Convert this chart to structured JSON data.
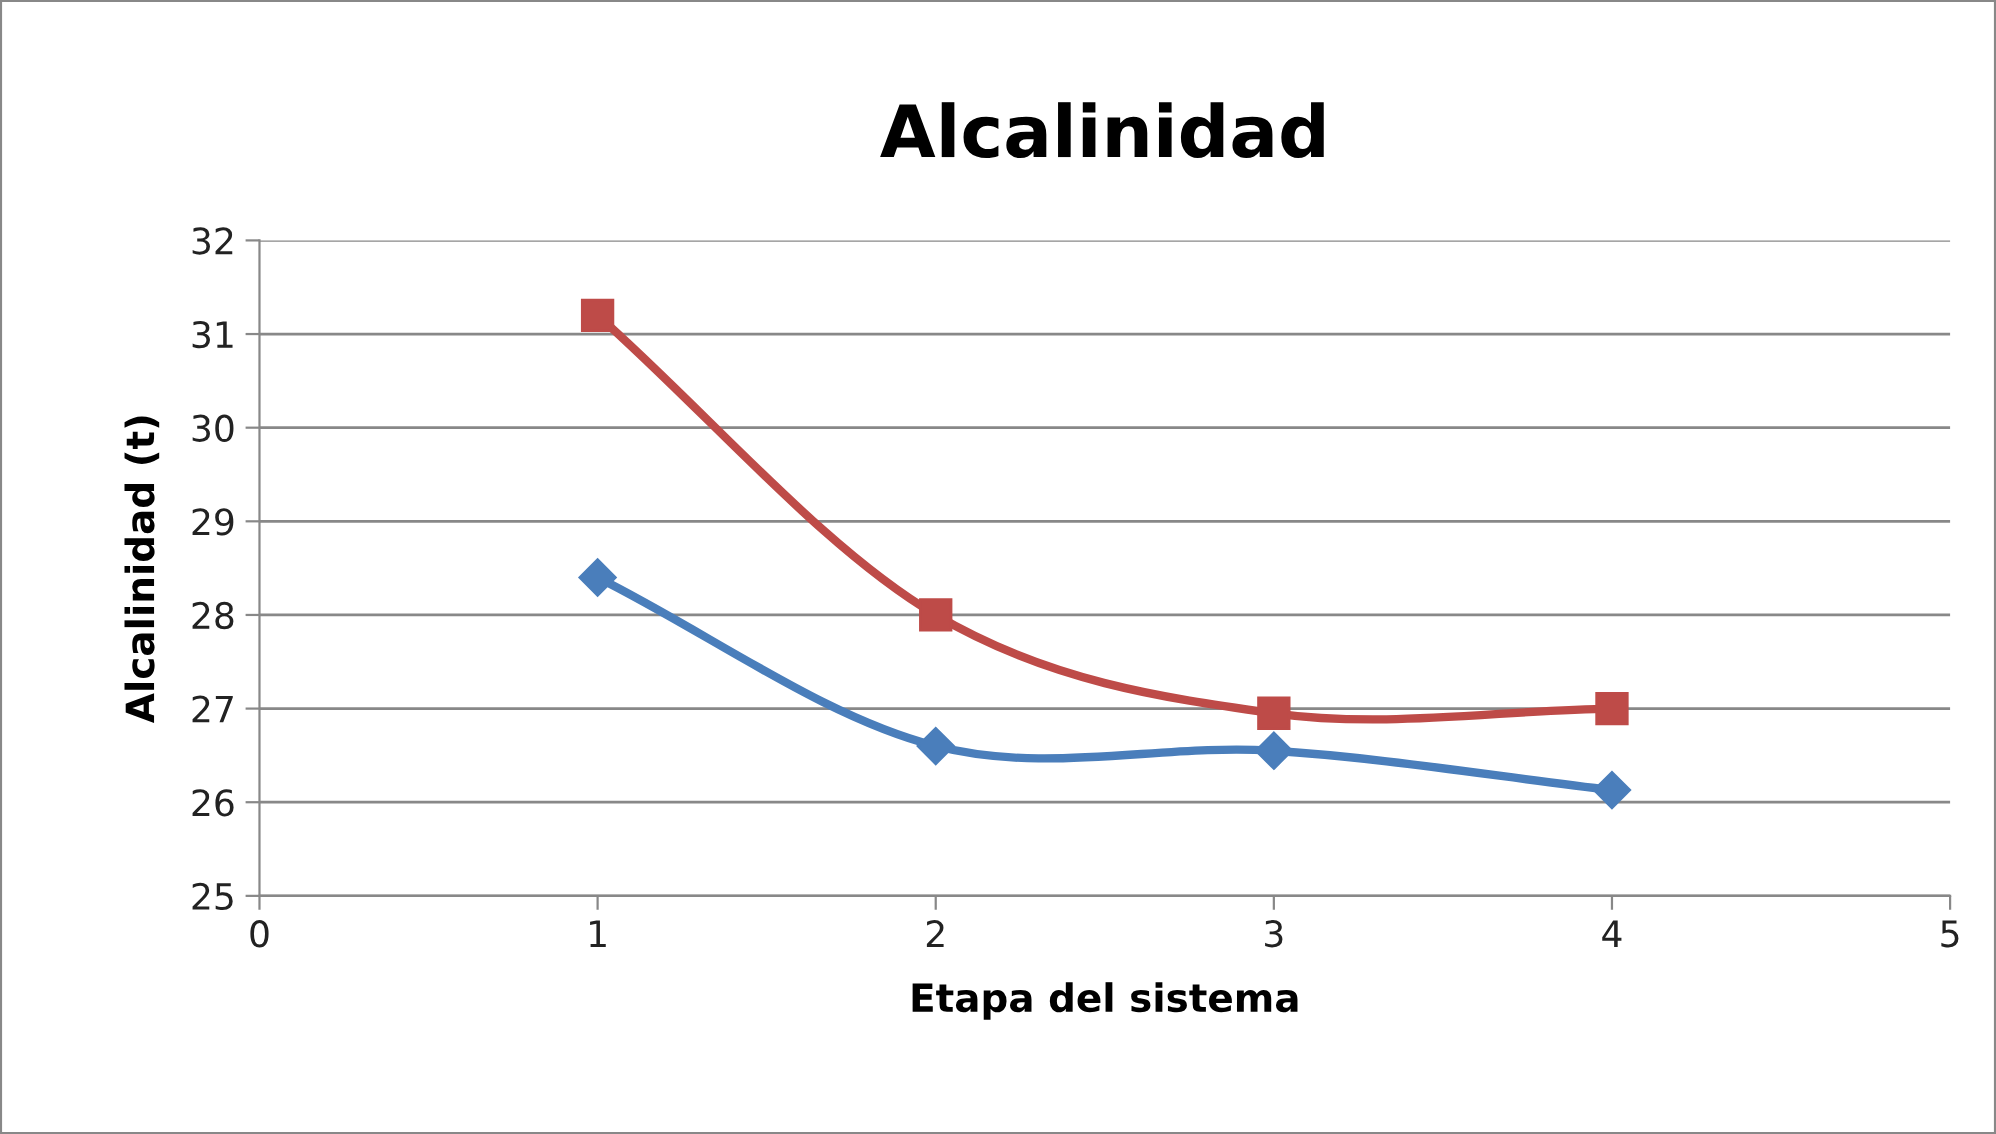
{
  "chart_data": {
    "type": "line",
    "title": "Alcalinidad",
    "xlabel": "Etapa del sistema",
    "ylabel": "Alcalinidad (t)",
    "series": [
      {
        "color": "#4a7ebb",
        "marker": "diamond",
        "x": [
          1,
          2,
          3,
          4
        ],
        "values": [
          28.4,
          26.6,
          26.55,
          26.13
        ]
      },
      {
        "color": "#be4b48",
        "marker": "square",
        "x": [
          1,
          2,
          3,
          4
        ],
        "values": [
          31.2,
          28.0,
          26.95,
          27.0
        ]
      }
    ],
    "xlim": [
      0,
      5
    ],
    "xticks": [
      0,
      1,
      2,
      3,
      4,
      5
    ],
    "ylim": [
      25,
      32
    ],
    "yticks": [
      25,
      26,
      27,
      28,
      29,
      30,
      31,
      32
    ],
    "grid": "y",
    "line_style": "solid"
  }
}
